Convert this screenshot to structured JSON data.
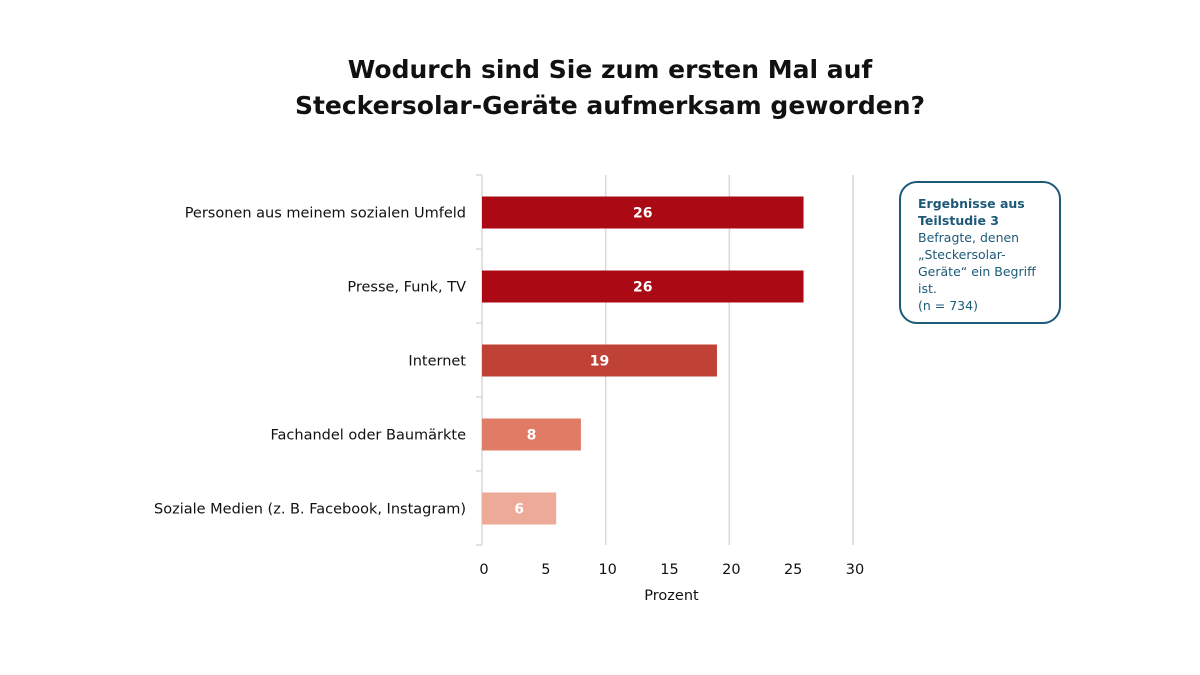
{
  "chart_data": {
    "type": "bar",
    "orientation": "horizontal",
    "title_lines": [
      "Wodurch sind Sie zum ersten Mal auf",
      "Steckersolar-Geräte aufmerksam geworden?"
    ],
    "categories": [
      "Personen aus meinem sozialen Umfeld",
      "Presse, Funk, TV",
      "Internet",
      "Fachandel oder Baumärkte",
      "Soziale Medien (z. B. Facebook, Instagram)"
    ],
    "values": [
      26,
      26,
      19,
      8,
      6
    ],
    "colors": [
      "#ab0a14",
      "#ab0a14",
      "#c04236",
      "#e07b66",
      "#eeaa98"
    ],
    "xlabel": "Prozent",
    "ylabel": "",
    "xlim": [
      0,
      30
    ],
    "xticks": [
      0,
      5,
      10,
      15,
      20,
      25,
      30
    ],
    "gridlines": [
      10,
      20,
      30
    ],
    "grid": true,
    "data_labels": true
  },
  "note": {
    "bold_lines": [
      "Ergebnisse aus",
      "Teilstudie 3"
    ],
    "lines": [
      "Befragte, denen",
      "„Steckersolar-",
      "Geräte“ ein Begriff",
      "ist.",
      "(n = 734)"
    ]
  }
}
